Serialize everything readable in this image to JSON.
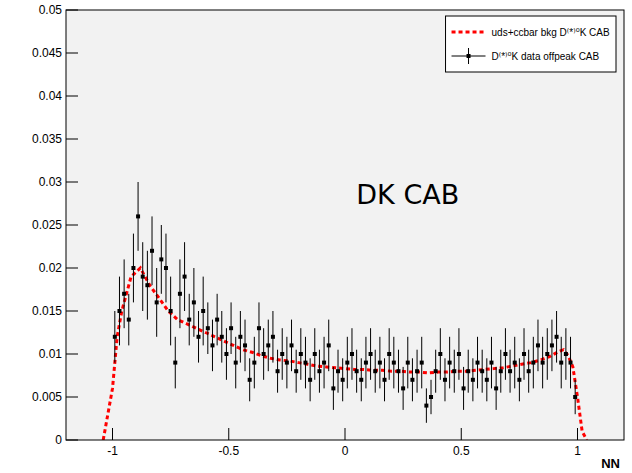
{
  "chart_data": {
    "type": "scatter",
    "annotation": "DK CAB",
    "x_label": "NN",
    "xlim": [
      -1.2,
      1.2
    ],
    "ylim": [
      0,
      0.05
    ],
    "xticks": [
      -1,
      -0.5,
      0,
      0.5,
      1
    ],
    "yticks": [
      0,
      0.005,
      0.01,
      0.015,
      0.02,
      0.025,
      0.03,
      0.035,
      0.04,
      0.045,
      0.05
    ],
    "legend": "top-right",
    "series": [
      {
        "name": "uds+ccbar bkg D⁽*⁾⁰K CAB",
        "type": "line",
        "color": "#ff0000",
        "line_style": "dashed",
        "x": [
          -1.04,
          -1.0,
          -0.98,
          -0.96,
          -0.94,
          -0.92,
          -0.9,
          -0.88,
          -0.86,
          -0.84,
          -0.8,
          -0.76,
          -0.72,
          -0.68,
          -0.64,
          -0.6,
          -0.56,
          -0.52,
          -0.48,
          -0.44,
          -0.4,
          -0.36,
          -0.32,
          -0.28,
          -0.24,
          -0.2,
          -0.16,
          -0.12,
          -0.08,
          -0.04,
          0,
          0.04,
          0.08,
          0.12,
          0.16,
          0.2,
          0.24,
          0.28,
          0.32,
          0.36,
          0.4,
          0.44,
          0.48,
          0.52,
          0.56,
          0.6,
          0.64,
          0.68,
          0.72,
          0.76,
          0.8,
          0.84,
          0.88,
          0.92,
          0.94,
          0.96,
          0.98,
          1.0,
          1.02,
          1.04
        ],
        "values": [
          0,
          0.006,
          0.012,
          0.015,
          0.017,
          0.019,
          0.0195,
          0.02,
          0.019,
          0.018,
          0.0165,
          0.015,
          0.014,
          0.0135,
          0.013,
          0.0125,
          0.012,
          0.0115,
          0.011,
          0.0105,
          0.0102,
          0.0098,
          0.0095,
          0.0093,
          0.0092,
          0.009,
          0.0088,
          0.0086,
          0.0085,
          0.0084,
          0.0083,
          0.0082,
          0.0082,
          0.0081,
          0.0081,
          0.008,
          0.008,
          0.0079,
          0.0079,
          0.0078,
          0.0079,
          0.0079,
          0.008,
          0.008,
          0.0081,
          0.0082,
          0.0083,
          0.0084,
          0.0086,
          0.0088,
          0.009,
          0.0093,
          0.0097,
          0.0103,
          0.0105,
          0.0098,
          0.0085,
          0.005,
          0.001,
          0
        ]
      },
      {
        "name": "D⁽*⁾⁰K data offpeak CAB",
        "type": "scatter",
        "color": "#000000",
        "marker": "square",
        "x": [
          -0.99,
          -0.97,
          -0.95,
          -0.93,
          -0.91,
          -0.89,
          -0.87,
          -0.85,
          -0.83,
          -0.81,
          -0.79,
          -0.77,
          -0.75,
          -0.73,
          -0.71,
          -0.69,
          -0.67,
          -0.65,
          -0.63,
          -0.61,
          -0.59,
          -0.57,
          -0.55,
          -0.53,
          -0.51,
          -0.49,
          -0.47,
          -0.45,
          -0.43,
          -0.41,
          -0.39,
          -0.37,
          -0.35,
          -0.33,
          -0.31,
          -0.29,
          -0.27,
          -0.25,
          -0.23,
          -0.21,
          -0.19,
          -0.17,
          -0.15,
          -0.13,
          -0.11,
          -0.09,
          -0.07,
          -0.05,
          -0.03,
          -0.01,
          0.01,
          0.03,
          0.05,
          0.07,
          0.09,
          0.11,
          0.13,
          0.15,
          0.17,
          0.19,
          0.21,
          0.23,
          0.25,
          0.27,
          0.29,
          0.31,
          0.33,
          0.35,
          0.37,
          0.39,
          0.41,
          0.43,
          0.45,
          0.47,
          0.49,
          0.51,
          0.53,
          0.55,
          0.57,
          0.59,
          0.61,
          0.63,
          0.65,
          0.67,
          0.69,
          0.71,
          0.73,
          0.75,
          0.77,
          0.79,
          0.81,
          0.83,
          0.85,
          0.87,
          0.89,
          0.91,
          0.93,
          0.95,
          0.97,
          0.99
        ],
        "values": [
          0.012,
          0.015,
          0.017,
          0.014,
          0.02,
          0.026,
          0.019,
          0.018,
          0.022,
          0.016,
          0.021,
          0.02,
          0.015,
          0.009,
          0.017,
          0.019,
          0.014,
          0.016,
          0.012,
          0.015,
          0.013,
          0.011,
          0.014,
          0.012,
          0.01,
          0.013,
          0.009,
          0.012,
          0.011,
          0.007,
          0.009,
          0.013,
          0.01,
          0.011,
          0.012,
          0.008,
          0.01,
          0.009,
          0.011,
          0.008,
          0.01,
          0.009,
          0.007,
          0.01,
          0.008,
          0.009,
          0.011,
          0.006,
          0.008,
          0.007,
          0.009,
          0.01,
          0.008,
          0.007,
          0.009,
          0.01,
          0.008,
          0.009,
          0.007,
          0.01,
          0.009,
          0.008,
          0.006,
          0.009,
          0.007,
          0.008,
          0.009,
          0.004,
          0.005,
          0.008,
          0.01,
          0.007,
          0.009,
          0.008,
          0.01,
          0.006,
          0.008,
          0.007,
          0.009,
          0.008,
          0.007,
          0.009,
          0.006,
          0.008,
          0.01,
          0.008,
          0.009,
          0.007,
          0.01,
          0.008,
          0.009,
          0.011,
          0.009,
          0.01,
          0.011,
          0.012,
          0.009,
          0.01,
          0.009,
          0.005
        ],
        "errors": [
          0.003,
          0.004,
          0.004,
          0.003,
          0.004,
          0.004,
          0.004,
          0.004,
          0.004,
          0.004,
          0.004,
          0.004,
          0.004,
          0.003,
          0.004,
          0.004,
          0.003,
          0.004,
          0.003,
          0.004,
          0.003,
          0.003,
          0.003,
          0.003,
          0.003,
          0.003,
          0.003,
          0.003,
          0.003,
          0.0025,
          0.003,
          0.003,
          0.003,
          0.003,
          0.003,
          0.0025,
          0.003,
          0.003,
          0.003,
          0.0025,
          0.003,
          0.003,
          0.0025,
          0.003,
          0.0025,
          0.003,
          0.003,
          0.0025,
          0.0025,
          0.0025,
          0.003,
          0.003,
          0.0025,
          0.0025,
          0.003,
          0.003,
          0.0025,
          0.003,
          0.0025,
          0.003,
          0.003,
          0.0025,
          0.0025,
          0.003,
          0.0025,
          0.0025,
          0.003,
          0.002,
          0.002,
          0.0025,
          0.003,
          0.0025,
          0.003,
          0.0025,
          0.003,
          0.0025,
          0.0025,
          0.0025,
          0.003,
          0.0025,
          0.0025,
          0.003,
          0.0025,
          0.0025,
          0.003,
          0.0025,
          0.003,
          0.0025,
          0.003,
          0.0025,
          0.003,
          0.003,
          0.003,
          0.003,
          0.003,
          0.003,
          0.003,
          0.003,
          0.003,
          0.002
        ]
      }
    ]
  }
}
